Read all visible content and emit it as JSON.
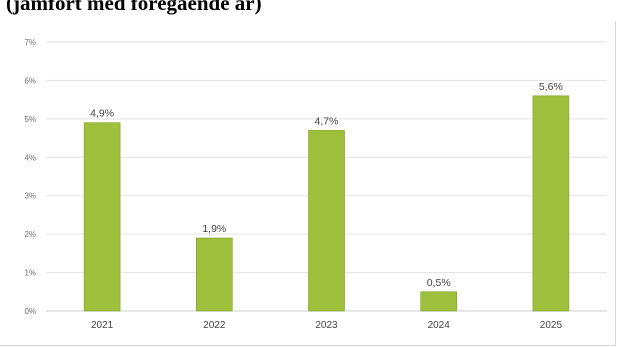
{
  "title": "(jämfört med föregående år)",
  "chart_data": {
    "type": "bar",
    "categories": [
      "2021",
      "2022",
      "2023",
      "2024",
      "2025"
    ],
    "values": [
      4.9,
      1.9,
      4.7,
      0.5,
      5.6
    ],
    "data_labels": [
      "4,9%",
      "1,9%",
      "4,7%",
      "0,5%",
      "5,6%"
    ],
    "ylim": [
      0,
      7
    ],
    "yticks": [
      0,
      1,
      2,
      3,
      4,
      5,
      6,
      7
    ],
    "ytick_labels": [
      "0%",
      "1%",
      "2%",
      "3%",
      "4%",
      "5%",
      "6%",
      "7%"
    ],
    "grid": true,
    "bar_color": "#9ec03c",
    "bar_edge_color": "#7ea02a",
    "grid_color": "#e3e3e3"
  }
}
